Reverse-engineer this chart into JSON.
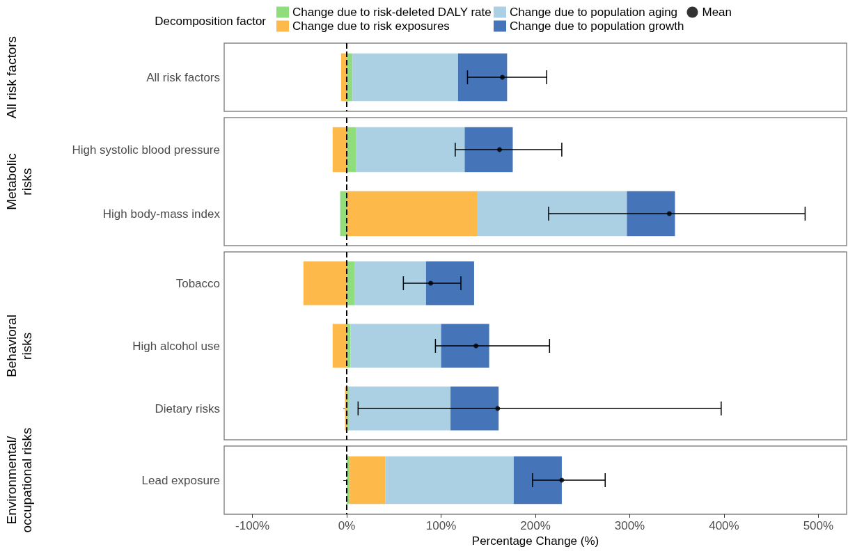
{
  "chart_data": [
    {
      "type": "bar",
      "orientation": "horizontal",
      "stacked": true,
      "ylabel": "All risk factors",
      "legend_title": "Decomposition factor",
      "legend": "top",
      "grid": false,
      "tick_labels": "y",
      "categories": [
        "All risk factors"
      ],
      "series": [
        {
          "name": "Change due to risk-deleted DALY rate",
          "color": "#8fdd7b",
          "values": [
            6
          ]
        },
        {
          "name": "Change due to risk exposures",
          "color": "#fdb94a",
          "values": [
            -6
          ]
        },
        {
          "name": "Change due to population aging",
          "color": "#abcfe3",
          "values": [
            112
          ]
        },
        {
          "name": "Change due to population growth",
          "color": "#4674b9",
          "values": [
            52
          ]
        },
        {
          "name": "Mean",
          "type": "scatter",
          "color": "#000000",
          "values": [
            165
          ],
          "errors": [
            [
              128,
              212
            ]
          ]
        }
      ],
      "xlim": [
        -130,
        530
      ],
      "ref_lines": [
        {
          "axis": "x",
          "value": 0,
          "line_style": "dashed"
        }
      ]
    },
    {
      "type": "bar",
      "orientation": "horizontal",
      "stacked": true,
      "ylabel": "Metabolic\nrisks",
      "grid": false,
      "tick_labels": "y",
      "categories": [
        "High systolic blood pressure",
        "High body-mass index"
      ],
      "series": [
        {
          "color": "#8fdd7b",
          "values": [
            10,
            -7
          ]
        },
        {
          "color": "#fdb94a",
          "values": [
            -15,
            138
          ]
        },
        {
          "color": "#abcfe3",
          "values": [
            115,
            159
          ]
        },
        {
          "color": "#4674b9",
          "values": [
            51,
            51
          ]
        },
        {
          "type": "scatter",
          "color": "#000000",
          "values": [
            162,
            342
          ],
          "errors": [
            [
              115,
              228
            ],
            [
              214,
              486
            ]
          ]
        }
      ],
      "xlim": [
        -130,
        530
      ],
      "ref_lines": [
        {
          "axis": "x",
          "value": 0,
          "line_style": "dashed"
        }
      ]
    },
    {
      "type": "bar",
      "orientation": "horizontal",
      "stacked": true,
      "ylabel": "Behavioral\nrisks",
      "grid": false,
      "tick_labels": "y",
      "categories": [
        "Tobacco",
        "High alcohol use",
        "Dietary risks"
      ],
      "series": [
        {
          "color": "#8fdd7b",
          "values": [
            8,
            4,
            2
          ]
        },
        {
          "color": "#fdb94a",
          "values": [
            -46,
            -15,
            -2
          ]
        },
        {
          "color": "#abcfe3",
          "values": [
            76,
            96,
            108
          ]
        },
        {
          "color": "#4674b9",
          "values": [
            51,
            51,
            51
          ]
        },
        {
          "type": "scatter",
          "color": "#000000",
          "values": [
            89,
            137,
            160
          ],
          "errors": [
            [
              60,
              121
            ],
            [
              94,
              215
            ],
            [
              12,
              397
            ]
          ]
        }
      ],
      "xlim": [
        -130,
        530
      ],
      "ref_lines": [
        {
          "axis": "x",
          "value": 0,
          "line_style": "dashed"
        }
      ]
    },
    {
      "type": "bar",
      "orientation": "horizontal",
      "stacked": true,
      "ylabel": "Environmental/\noccupational risks",
      "xlabel": "Percentage Change (%)",
      "grid": false,
      "categories": [
        "Lead exposure"
      ],
      "series": [
        {
          "color": "#8fdd7b",
          "values": [
            3
          ]
        },
        {
          "color": "#fdb94a",
          "values": [
            38
          ]
        },
        {
          "color": "#abcfe3",
          "values": [
            136
          ]
        },
        {
          "color": "#4674b9",
          "values": [
            51
          ]
        },
        {
          "type": "scatter",
          "color": "#000000",
          "values": [
            228
          ],
          "errors": [
            [
              197,
              274
            ]
          ]
        }
      ],
      "xlim": [
        -130,
        530
      ],
      "xticks": [
        {
          "value": -100,
          "label": "-100%"
        },
        {
          "value": 0,
          "label": "0%"
        },
        {
          "value": 100,
          "label": "100%"
        },
        {
          "value": 200,
          "label": "200%"
        },
        {
          "value": 300,
          "label": "300%"
        },
        {
          "value": 400,
          "label": "400%"
        },
        {
          "value": 500,
          "label": "500%"
        }
      ],
      "ref_lines": [
        {
          "axis": "x",
          "value": 0,
          "line_style": "dashed"
        }
      ]
    }
  ]
}
